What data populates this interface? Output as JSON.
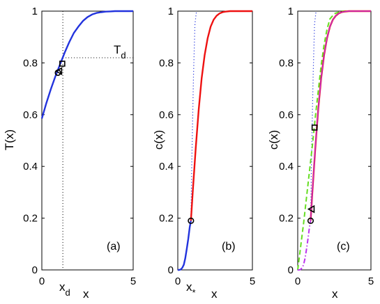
{
  "chart_data": [
    {
      "type": "line",
      "panel_label": "(a)",
      "xlabel": "x",
      "ylabel": "T(x)",
      "xlim": [
        0,
        5
      ],
      "ylim": [
        0,
        1
      ],
      "xticks": [
        {
          "v": 0,
          "label": "0"
        },
        {
          "v": 5,
          "label": "5"
        }
      ],
      "yticks": [
        {
          "v": 0,
          "label": "0"
        },
        {
          "v": 0.2,
          "label": "0.2"
        },
        {
          "v": 0.4,
          "label": "0.4"
        },
        {
          "v": 0.6,
          "label": "0.6"
        },
        {
          "v": 0.8,
          "label": "0.8"
        },
        {
          "v": 1,
          "label": "1"
        }
      ],
      "series": [
        {
          "color": "#2233dd",
          "style": "solid",
          "x": [
            0,
            0.25,
            0.5,
            0.75,
            1.0,
            1.25,
            1.5,
            1.75,
            2.0,
            2.25,
            2.5,
            2.75,
            3.0,
            3.25,
            3.5,
            3.75,
            4.0,
            4.5,
            5.0
          ],
          "y": [
            0.585,
            0.645,
            0.7,
            0.75,
            0.795,
            0.84,
            0.88,
            0.915,
            0.94,
            0.962,
            0.977,
            0.987,
            0.993,
            0.996,
            0.998,
            0.999,
            1.0,
            1.0,
            1.0
          ]
        }
      ],
      "guides": [
        {
          "type": "vline",
          "x": 1.15,
          "color": "#000000"
        },
        {
          "type": "hline",
          "y": 0.82,
          "from_x": 1.15,
          "color": "#000000"
        }
      ],
      "markers": [
        {
          "shape": "square",
          "x": 1.12,
          "y": 0.797
        },
        {
          "shape": "triangle-left",
          "x": 0.95,
          "y": 0.768
        },
        {
          "shape": "circle",
          "x": 0.88,
          "y": 0.762
        }
      ],
      "annotations": [
        {
          "text": "T",
          "sub": "d",
          "x": 4.0,
          "y": 0.84
        },
        {
          "text": "x",
          "sub": "d",
          "at_x_axis": 1.15
        }
      ]
    },
    {
      "type": "line",
      "panel_label": "(b)",
      "xlabel": "x",
      "ylabel": "c(x)",
      "xlim": [
        0,
        5
      ],
      "ylim": [
        0,
        1
      ],
      "xticks": [
        {
          "v": 0,
          "label": "0"
        },
        {
          "v": 5,
          "label": "5"
        }
      ],
      "yticks": [
        {
          "v": 0,
          "label": "0"
        },
        {
          "v": 0.2,
          "label": "0.2"
        },
        {
          "v": 0.4,
          "label": "0.4"
        },
        {
          "v": 0.6,
          "label": "0.6"
        },
        {
          "v": 0.8,
          "label": "0.8"
        },
        {
          "v": 1,
          "label": "1"
        }
      ],
      "series": [
        {
          "color": "#2233dd",
          "style": "solid",
          "x": [
            0,
            0.1,
            0.2,
            0.3,
            0.4,
            0.5,
            0.6,
            0.7,
            0.8,
            0.88
          ],
          "y": [
            0,
            0.0,
            0.002,
            0.008,
            0.02,
            0.045,
            0.08,
            0.12,
            0.165,
            0.19
          ]
        },
        {
          "color": "#2233dd",
          "style": "dotted",
          "x": [
            0.88,
            0.95,
            1.05,
            1.15,
            1.25
          ],
          "y": [
            0.19,
            0.45,
            0.75,
            0.95,
            1.0
          ]
        },
        {
          "color": "#ee1111",
          "style": "solid",
          "x": [
            0.88,
            1.0,
            1.2,
            1.4,
            1.6,
            1.8,
            2.0,
            2.2,
            2.4,
            2.6,
            2.8,
            3.0,
            3.2,
            3.5,
            4.0,
            5.0
          ],
          "y": [
            0.19,
            0.3,
            0.47,
            0.62,
            0.74,
            0.83,
            0.895,
            0.94,
            0.967,
            0.982,
            0.991,
            0.996,
            0.998,
            1.0,
            1.0,
            1.0
          ]
        }
      ],
      "guides": [],
      "markers": [
        {
          "shape": "circle",
          "x": 0.88,
          "y": 0.19
        }
      ],
      "annotations": [
        {
          "text": "x",
          "sub": "*",
          "at_x_axis": 0.88
        }
      ]
    },
    {
      "type": "line",
      "panel_label": "(c)",
      "xlabel": "x",
      "ylabel": "c(x)",
      "xlim": [
        0,
        5
      ],
      "ylim": [
        0,
        1
      ],
      "xticks": [
        {
          "v": 0,
          "label": "0"
        },
        {
          "v": 5,
          "label": "5"
        }
      ],
      "yticks": [
        {
          "v": 0,
          "label": "0"
        },
        {
          "v": 0.2,
          "label": "0.2"
        },
        {
          "v": 0.4,
          "label": "0.4"
        },
        {
          "v": 0.6,
          "label": "0.6"
        },
        {
          "v": 0.8,
          "label": "0.8"
        },
        {
          "v": 1,
          "label": "1"
        }
      ],
      "series": [
        {
          "color": "#2233dd",
          "style": "dotted",
          "x": [
            0.88,
            0.95,
            1.05,
            1.15,
            1.25
          ],
          "y": [
            0.19,
            0.45,
            0.75,
            0.95,
            1.0
          ]
        },
        {
          "color": "#66dd22",
          "style": "dashed",
          "x": [
            0,
            0.2,
            0.4,
            0.6,
            0.8,
            1.0,
            1.2,
            1.4,
            1.6,
            1.8,
            2.0,
            2.2,
            2.5,
            3.0,
            4.0,
            5.0
          ],
          "y": [
            0,
            0.09,
            0.18,
            0.28,
            0.38,
            0.48,
            0.59,
            0.69,
            0.79,
            0.87,
            0.93,
            0.97,
            0.99,
            1.0,
            1.0,
            1.0
          ]
        },
        {
          "color": "#bb33ee",
          "style": "dashdot",
          "x": [
            0,
            0.1,
            0.2,
            0.3,
            0.4,
            0.5,
            0.6,
            0.7,
            0.8,
            0.88
          ],
          "y": [
            0,
            0.0,
            0.002,
            0.008,
            0.02,
            0.045,
            0.08,
            0.12,
            0.165,
            0.19
          ]
        },
        {
          "color": "#ee1111",
          "style": "solid",
          "x": [
            0.88,
            1.0,
            1.2,
            1.4,
            1.6,
            1.8,
            2.0,
            2.2,
            2.4,
            2.6,
            2.8,
            3.0,
            3.2,
            3.5,
            4.0,
            5.0
          ],
          "y": [
            0.19,
            0.3,
            0.47,
            0.62,
            0.74,
            0.83,
            0.895,
            0.94,
            0.967,
            0.982,
            0.991,
            0.996,
            0.998,
            1.0,
            1.0,
            1.0
          ]
        },
        {
          "color": "#bb33ee",
          "style": "solid-thin",
          "x": [
            0.88,
            1.0,
            1.2,
            1.4,
            1.6,
            1.8,
            2.0,
            2.2,
            2.4,
            2.6,
            2.8,
            3.0,
            3.2,
            3.5,
            4.0,
            5.0
          ],
          "y": [
            0.19,
            0.3,
            0.47,
            0.62,
            0.74,
            0.83,
            0.895,
            0.94,
            0.967,
            0.982,
            0.991,
            0.996,
            0.998,
            1.0,
            1.0,
            1.0
          ]
        }
      ],
      "guides": [],
      "markers": [
        {
          "shape": "square",
          "x": 1.15,
          "y": 0.55
        },
        {
          "shape": "triangle-left",
          "x": 0.95,
          "y": 0.235
        },
        {
          "shape": "circle",
          "x": 0.88,
          "y": 0.19
        }
      ],
      "annotations": []
    }
  ]
}
